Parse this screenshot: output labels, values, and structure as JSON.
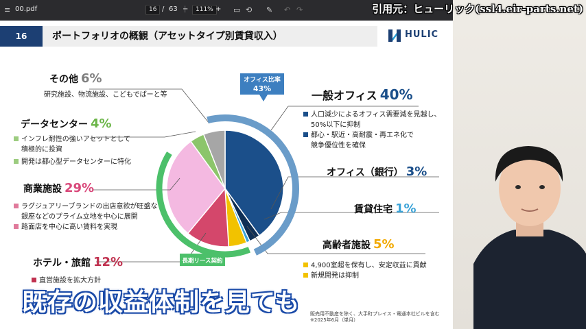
{
  "pdf_toolbar": {
    "file_name": "00.pdf",
    "page_current": "16",
    "page_sep": "/",
    "page_total": "63",
    "zoom_out": "−",
    "zoom_level": "111%",
    "zoom_in": "+",
    "icons": [
      "menu-icon",
      "fit-page-icon",
      "rotate-icon",
      "draw-icon",
      "undo-icon",
      "redo-icon"
    ]
  },
  "credit": "引用元：ヒューリック(ssl4.eir-parts.net)",
  "slide": {
    "number": "16",
    "title": "ポートフォリオの概観（アセットタイプ別賃貸収入）",
    "logo_text": "HULIC",
    "categories": [
      {
        "name": "その他",
        "pct": "6%",
        "color": "#a6a6a6",
        "bullets": [
          {
            "text": "研究施設、物流施設、こどもでぱーと等",
            "marker": ""
          }
        ]
      },
      {
        "name": "データセンター",
        "pct": "4%",
        "color": "#8cc56b",
        "bullets": [
          {
            "text": "インフレ耐性の強いアセットとして",
            "marker": "#9ccc7f"
          },
          {
            "text": "積極的に投資",
            "marker": ""
          },
          {
            "text": "開発は都心型データセンターに特化",
            "marker": "#9ccc7f"
          }
        ]
      },
      {
        "name": "商業施設",
        "pct": "29%",
        "color": "#f4b9e1",
        "bullets": [
          {
            "text": "ラグジュアリーブランドの出店意欲が旺盛な",
            "marker": "#e07a9b"
          },
          {
            "text": "銀座などのプライム立地を中心に展開",
            "marker": ""
          },
          {
            "text": "路面店を中心に高い賃料を実現",
            "marker": "#e07a9b"
          }
        ]
      },
      {
        "name": "ホテル・旅館",
        "pct": "12%",
        "color": "#d4476b",
        "bullets": [
          {
            "text": "直営施設を拡大方針",
            "marker": "#c0314f"
          }
        ]
      },
      {
        "name": "一般オフィス",
        "pct": "40%",
        "color": "#1b4f8a",
        "bullets": [
          {
            "text": "人口減少によるオフィス需要減を見越し、",
            "marker": "#1b4f8a"
          },
          {
            "text": "50%以下に抑制",
            "marker": ""
          },
          {
            "text": "都心・駅近・高耐震・再エネ化で",
            "marker": "#1b4f8a"
          },
          {
            "text": "競争優位性を確保",
            "marker": ""
          }
        ]
      },
      {
        "name": "オフィス（銀行）",
        "pct": "3%",
        "color": "#0f2f55",
        "bullets": []
      },
      {
        "name": "賃貸住宅",
        "pct": "1%",
        "color": "#3aa3d8",
        "bullets": []
      },
      {
        "name": "高齢者施設",
        "pct": "5%",
        "color": "#f2c200",
        "bullets": [
          {
            "text": "4,900室超を保有し、安定収益に貢献",
            "marker": "#f2c200"
          },
          {
            "text": "新規開発は抑制",
            "marker": "#f2c200"
          }
        ]
      }
    ],
    "office_ratio_label": "オフィス比率",
    "office_ratio_value": "43%",
    "long_lease_label": "長期リース契約",
    "footnote_1": "販売用不動産を除く、大手町プレイス・電通本社ビルを含む",
    "footnote_2": "※2025年6月（単月）"
  },
  "chart_data": {
    "type": "pie",
    "categories": [
      "一般オフィス",
      "オフィス（銀行）",
      "賃貸住宅",
      "高齢者施設",
      "ホテル・旅館",
      "商業施設",
      "データセンター",
      "その他"
    ],
    "values": [
      40,
      3,
      1,
      5,
      12,
      29,
      4,
      6
    ],
    "colors": [
      "#1b4f8a",
      "#0f2f55",
      "#3aa3d8",
      "#f2c200",
      "#d4476b",
      "#f4b9e1",
      "#8cc56b",
      "#a6a6a6"
    ]
  },
  "subtitle": "既存の収益体制を見ても"
}
